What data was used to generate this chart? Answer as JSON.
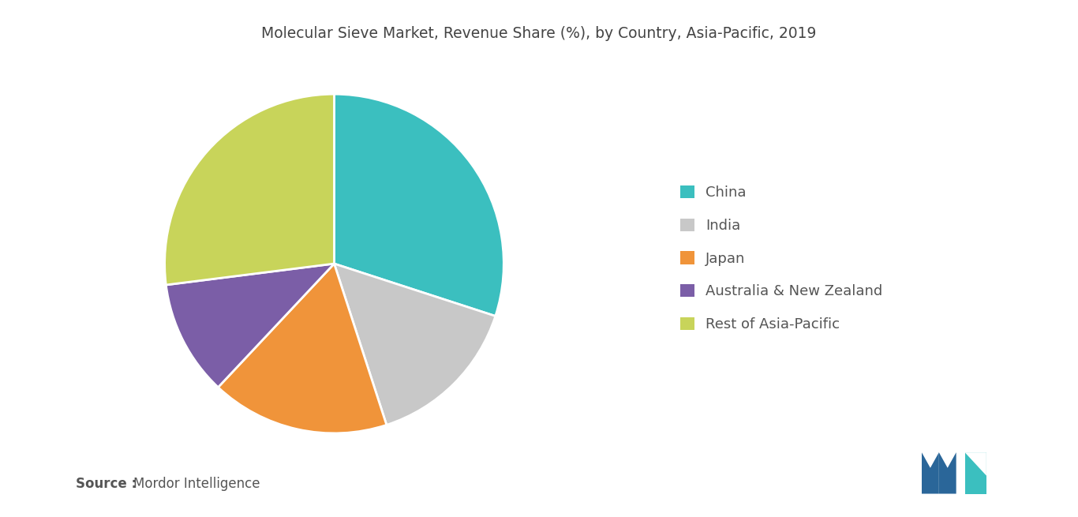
{
  "title": "Molecular Sieve Market, Revenue Share (%), by Country, Asia-Pacific, 2019",
  "labels": [
    "China",
    "India",
    "Japan",
    "Australia & New Zealand",
    "Rest of Asia-Pacific"
  ],
  "values": [
    30,
    15,
    17,
    11,
    27
  ],
  "colors": [
    "#3bbfbf",
    "#c8c8c8",
    "#f0943a",
    "#7b5ea7",
    "#c8d45a"
  ],
  "source_label": "Source : ",
  "source_value": "Mordor Intelligence",
  "background_color": "#ffffff",
  "title_fontsize": 13.5,
  "legend_fontsize": 13,
  "source_fontsize": 12,
  "startangle": 90,
  "wedge_linewidth": 2.0,
  "wedge_edgecolor": "#ffffff",
  "text_color": "#555555",
  "legend_marker_size": 14
}
